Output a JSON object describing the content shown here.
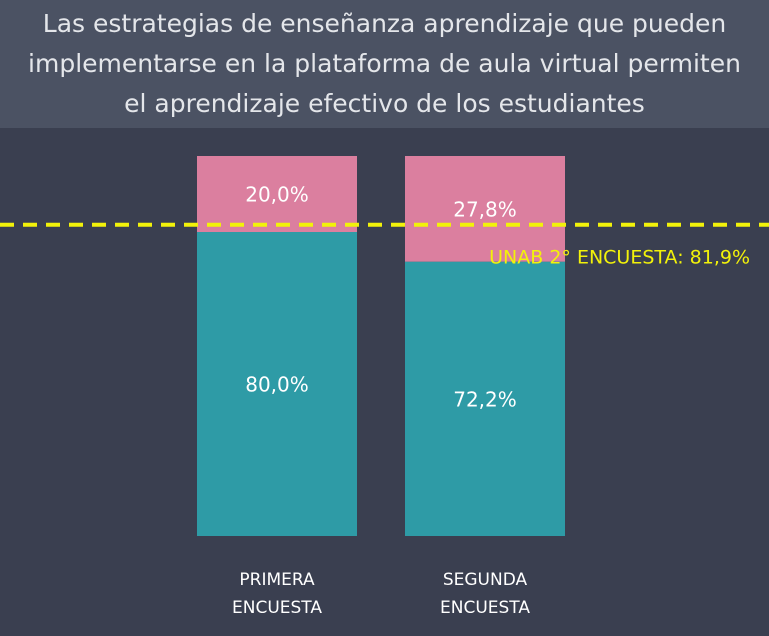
{
  "chart_data": {
    "type": "stacked_bar",
    "title": "Las estrategias de enseñanza aprendizaje que pueden implementarse en la plataforma de aula virtual permiten el aprendizaje efectivo de los estudiantes",
    "categories": [
      "PRIMERA ENCUESTA",
      "SEGUNDA ENCUESTA"
    ],
    "series": [
      {
        "color": "#2e9ba6",
        "values": [
          80.0,
          72.2
        ],
        "value_labels": [
          "80,0%",
          "72,2%"
        ]
      },
      {
        "color": "#db7f9f",
        "values": [
          20.0,
          27.8
        ],
        "value_labels": [
          "20,0%",
          "27,8%"
        ]
      }
    ],
    "ylim": [
      0,
      100
    ],
    "reference_line": {
      "value": 81.9,
      "label": "UNAB 2° ENCUESTA: 81,9%",
      "color": "#f2f20a"
    }
  }
}
